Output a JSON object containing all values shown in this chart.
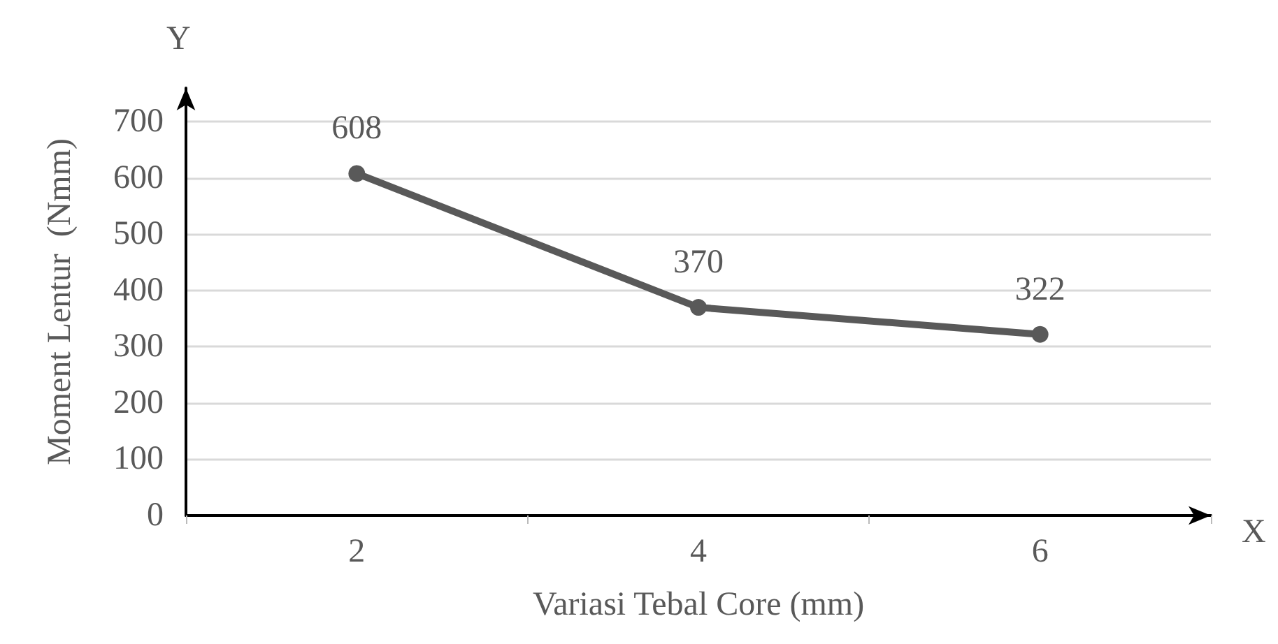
{
  "chart_data": {
    "type": "line",
    "xlabel": "Variasi Tebal Core (mm)",
    "ylabel": "Moment Lentur  (Nmm)",
    "annotations": [
      "Y",
      "X"
    ],
    "categories": [
      "2",
      "4",
      "6"
    ],
    "series": [
      {
        "color": "#595959",
        "values": [
          608,
          370,
          322
        ]
      }
    ],
    "ylim": [
      0,
      760
    ],
    "yticks": [
      0,
      100,
      200,
      300,
      400,
      500,
      600,
      700
    ],
    "grid": "y",
    "marker": "circle",
    "line_style": "solid",
    "data_labels": true
  }
}
